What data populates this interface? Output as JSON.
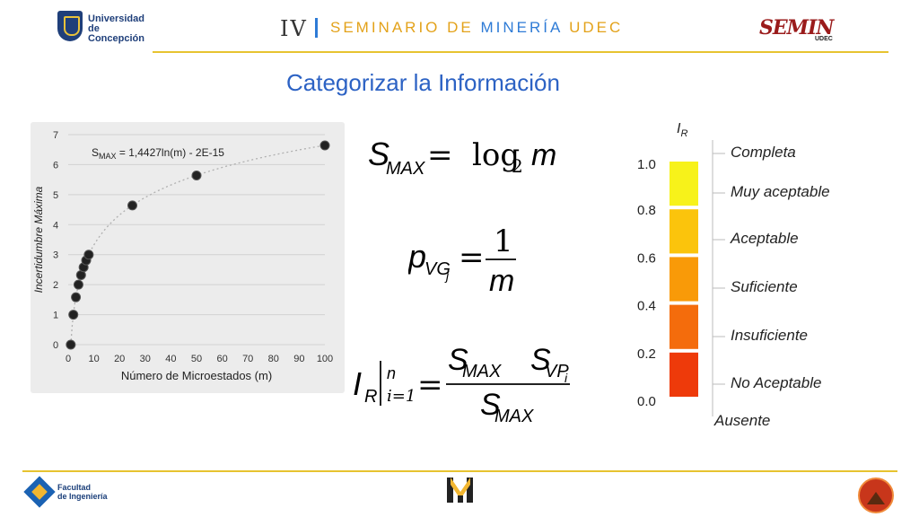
{
  "header": {
    "university_lines": [
      "Universidad",
      "de Concepción"
    ],
    "seminar_number": "IV",
    "seminar_title_part1": "SEMINARIO DE ",
    "seminar_title_part2": "MINERÍA",
    "seminar_title_part3": " UDEC",
    "semin_logo": "SEMIN",
    "semin_logo_sub": "UDEC"
  },
  "page_title": "Categorizar la Información",
  "colors": {
    "title_blue": "#2c62c4",
    "accent_gold": "#e7c330",
    "seminar_gold": "#e3a21a",
    "seminar_blue": "#2e7bd6"
  },
  "chart_data": {
    "type": "scatter",
    "xlabel": "Número de Microestados (m)",
    "ylabel": "Incertidumbre Máxima",
    "xlim": [
      0,
      100
    ],
    "ylim": [
      0,
      7
    ],
    "x_ticks": [
      0,
      10,
      20,
      30,
      40,
      50,
      60,
      70,
      80,
      90,
      100
    ],
    "y_ticks": [
      0,
      1,
      2,
      3,
      4,
      5,
      6,
      7
    ],
    "grid": true,
    "trendline": {
      "type": "log",
      "coef": 1.4427,
      "label_main": "S",
      "label_sub": "MAX",
      "label_rest": " = 1,4427ln(m) - 2E-15"
    },
    "points": [
      {
        "x": 1,
        "y": 0
      },
      {
        "x": 2,
        "y": 1
      },
      {
        "x": 3,
        "y": 1.58
      },
      {
        "x": 4,
        "y": 2
      },
      {
        "x": 5,
        "y": 2.32
      },
      {
        "x": 6,
        "y": 2.58
      },
      {
        "x": 7,
        "y": 2.81
      },
      {
        "x": 8,
        "y": 3
      },
      {
        "x": 25,
        "y": 4.64
      },
      {
        "x": 50,
        "y": 5.64
      },
      {
        "x": 100,
        "y": 6.64
      }
    ]
  },
  "formulas": {
    "f1": {
      "lhs": "S",
      "lhs_sub": "MAX",
      "eq": "=",
      "op": "log",
      "op_sub": "2",
      "var": "m"
    },
    "f2": {
      "lhs": "p",
      "lhs_sub": "VG",
      "lhs_subsub": "j",
      "eq": "=",
      "num": "1",
      "den": "m"
    },
    "f3": {
      "lhs": "I",
      "lhs_sub": "R",
      "upper": "n",
      "lower": "i=1",
      "eq": "=",
      "num_a": "S",
      "num_a_sub": "MAX",
      "num_b": "S",
      "num_b_sub": "VP",
      "num_b_subsub": "i",
      "den": "S",
      "den_sub": "MAX"
    }
  },
  "scale": {
    "axis_label": "I",
    "axis_label_sub": "R",
    "ticks": [
      "1.0",
      "0.8",
      "0.6",
      "0.4",
      "0.2",
      "0.0"
    ],
    "categories": [
      "Completa",
      "Muy aceptable",
      "Aceptable",
      "Suficiente",
      "Insuficiente",
      "No Aceptable",
      "Ausente"
    ],
    "segment_colors": [
      "#f7f21a",
      "#fbc40c",
      "#f99a08",
      "#f46c0c",
      "#ee3a0a"
    ]
  },
  "footer": {
    "faculty_lines": [
      "Facultad",
      "de Ingeniería"
    ]
  }
}
